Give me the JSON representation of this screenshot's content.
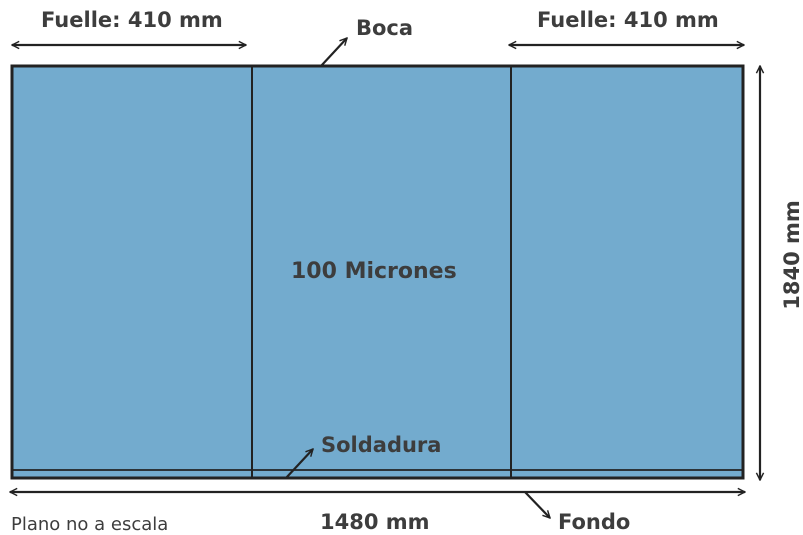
{
  "labels": {
    "gusset_left": "Fuelle: 410 mm",
    "gusset_right": "Fuelle: 410 mm",
    "mouth": "Boca",
    "thickness": "100 Micrones",
    "weld": "Soldadura",
    "width": "1480 mm",
    "height": "1840 mm",
    "bottom": "Fondo",
    "scale_note": "Plano no a escala"
  },
  "colors": {
    "panel": "#73abce",
    "outline": "#222222",
    "text": "#3d3d3d"
  }
}
